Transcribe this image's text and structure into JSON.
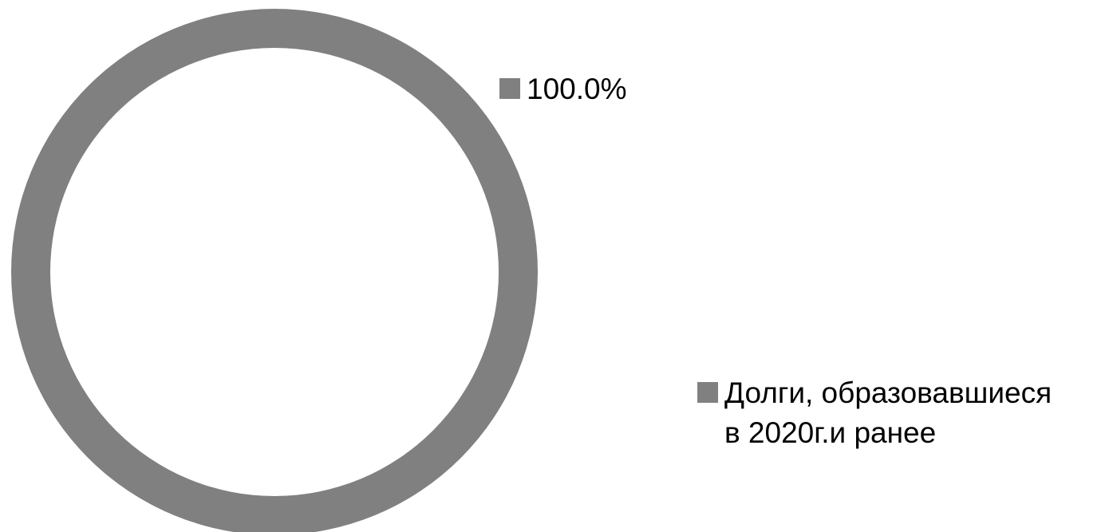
{
  "chart_data": {
    "type": "pie",
    "variant": "donut",
    "title": "",
    "categories": [
      "Долги, образовавшиеся в 2020г.и ранее"
    ],
    "values": [
      100.0
    ],
    "data_labels": [
      "100.0%"
    ],
    "legend": {
      "placement": "right",
      "entries": [
        {
          "label": "100.0%",
          "color": "#808080"
        },
        {
          "label": "Долги, образовавшиеся\nв 2020г.и ранее",
          "color": "#808080"
        }
      ]
    },
    "colors": [
      "#808080"
    ],
    "grid": false
  }
}
